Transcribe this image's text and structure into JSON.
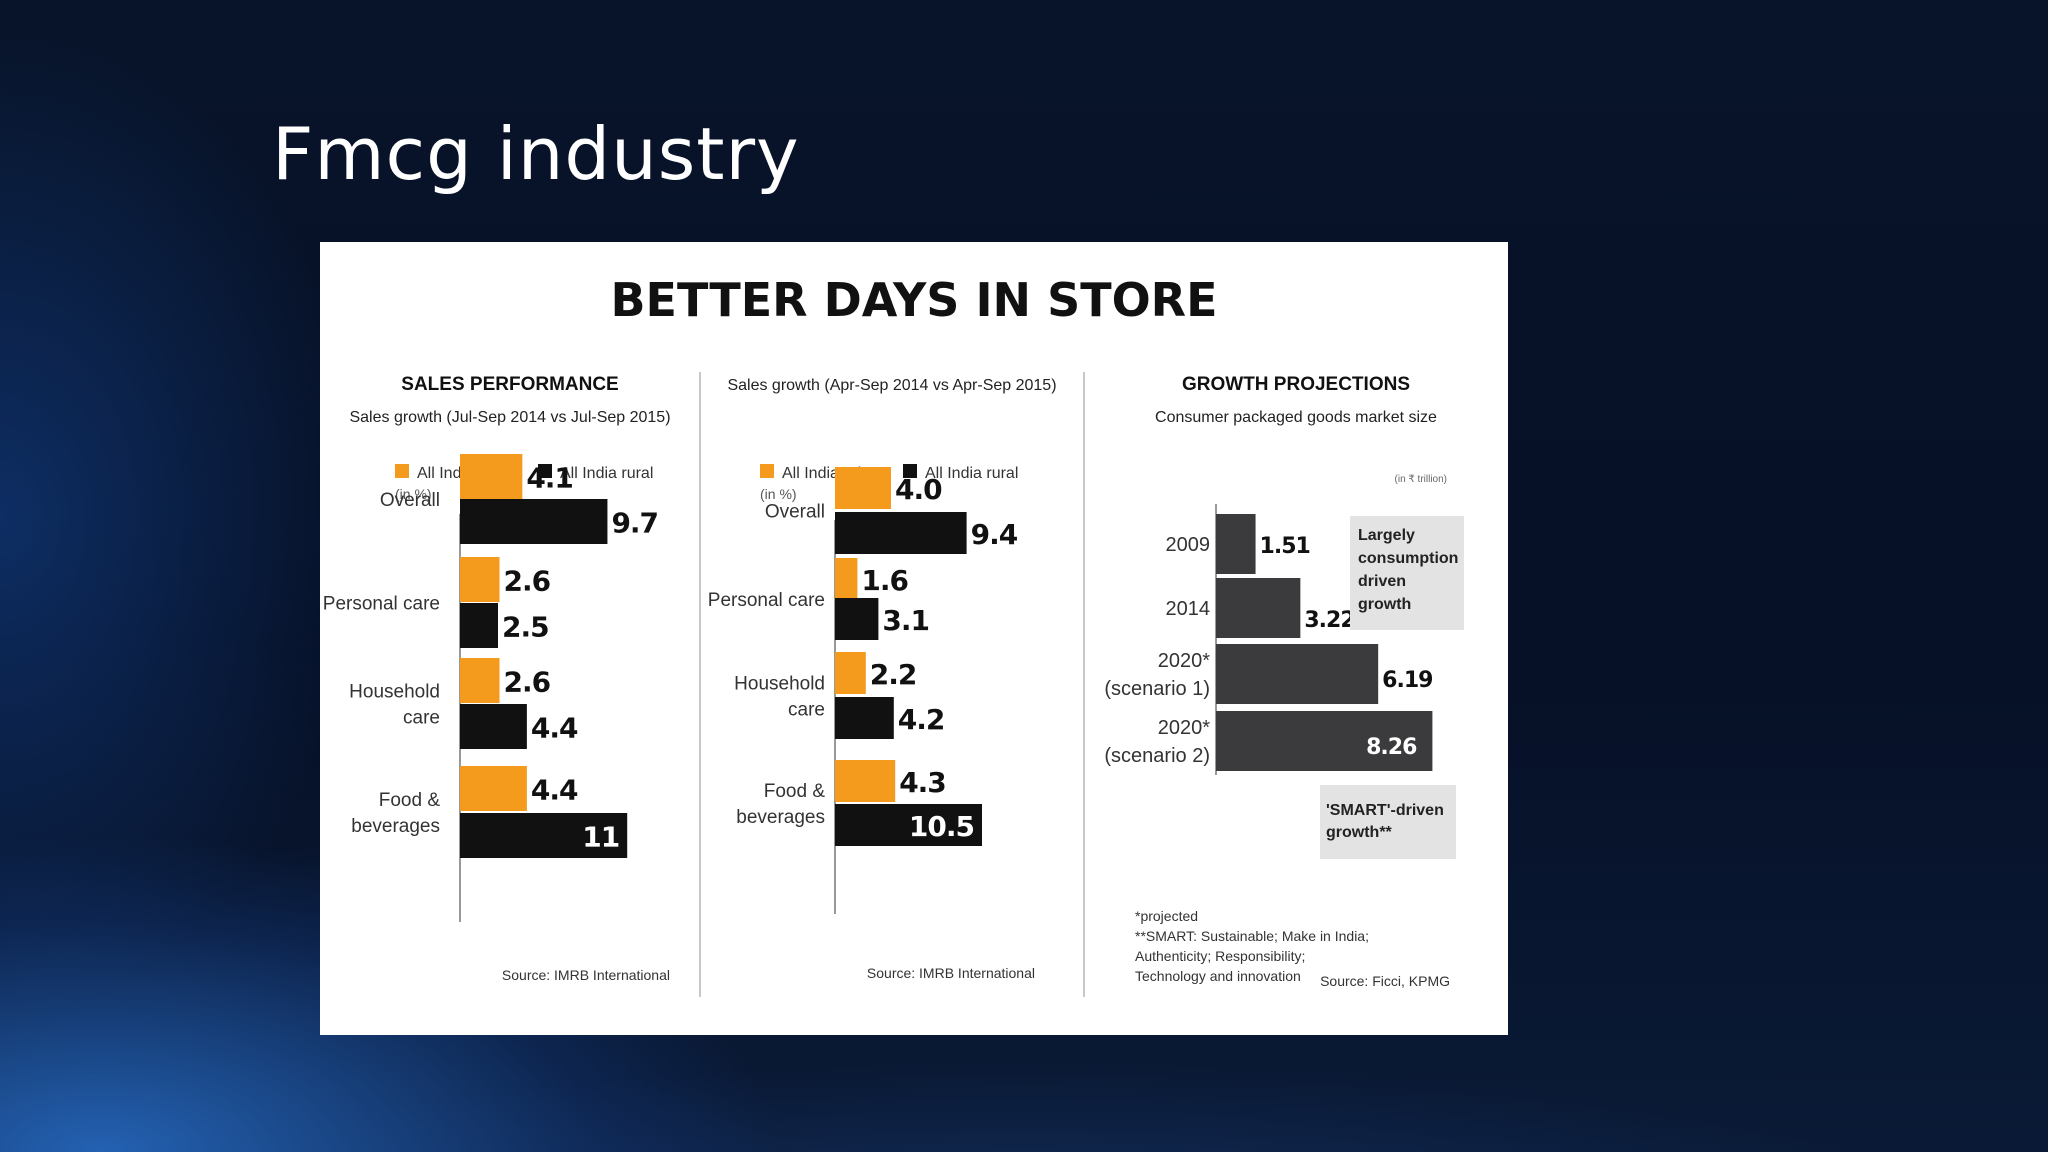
{
  "slide": {
    "title": "Fmcg industry"
  },
  "infographic": {
    "headline": "BETTER DAYS IN STORE",
    "colors": {
      "urban": "#f49a1c",
      "rural": "#111111",
      "projection": "#3b3b3d",
      "note_bg": "#e3e3e3"
    },
    "footnote": {
      "projected": "*projected",
      "smart_line1": "**SMART: Sustainable; Make in India;",
      "smart_line2": "Authenticity; Responsibility;",
      "smart_line3": "Technology and innovation"
    }
  },
  "chart_data": [
    {
      "type": "bar",
      "orientation": "horizontal",
      "title": "SALES PERFORMANCE",
      "subtitle": "Sales growth (Jul-Sep 2014  vs Jul-Sep 2015)",
      "unit": "(in %)",
      "categories": [
        [
          "Overall"
        ],
        [
          "Personal care"
        ],
        [
          "Household",
          "care"
        ],
        [
          "Food &",
          "beverages"
        ]
      ],
      "series": [
        {
          "name": "All India urban",
          "values": [
            4.1,
            2.6,
            2.6,
            4.4
          ],
          "labels": [
            "4.1",
            "2.6",
            "2.6",
            "4.4"
          ]
        },
        {
          "name": "All India rural",
          "values": [
            9.7,
            2.5,
            4.4,
            11
          ],
          "labels": [
            "9.7",
            "2.5",
            "4.4",
            "11"
          ]
        }
      ],
      "source": "Source: IMRB International"
    },
    {
      "type": "bar",
      "orientation": "horizontal",
      "title": "",
      "subtitle": "Sales growth (Apr-Sep 2014 vs Apr-Sep 2015)",
      "unit": "(in %)",
      "categories": [
        [
          "Overall"
        ],
        [
          "Personal care"
        ],
        [
          "Household",
          "care"
        ],
        [
          "Food &",
          "beverages"
        ]
      ],
      "series": [
        {
          "name": "All India urban",
          "values": [
            4.0,
            1.6,
            2.2,
            4.3
          ],
          "labels": [
            "4.0",
            "1.6",
            "2.2",
            "4.3"
          ]
        },
        {
          "name": "All India rural",
          "values": [
            9.4,
            3.1,
            4.2,
            10.5
          ],
          "labels": [
            "9.4",
            "3.1",
            "4.2",
            "10.5"
          ]
        }
      ],
      "source": "Source: IMRB International"
    },
    {
      "type": "bar",
      "orientation": "horizontal",
      "title": "GROWTH PROJECTIONS",
      "subtitle": "Consumer packaged goods market size",
      "unit": "(in ₹ trillion)",
      "categories": [
        [
          "2009"
        ],
        [
          "2014"
        ],
        [
          "2020*",
          "(scenario 1)"
        ],
        [
          "2020*",
          "(scenario 2)"
        ]
      ],
      "series": [
        {
          "name": "",
          "values": [
            1.51,
            3.22,
            6.19,
            8.26
          ],
          "labels": [
            "1.51",
            "3.22",
            "6.19",
            "8.26"
          ]
        }
      ],
      "annotations": [
        {
          "lines": [
            "Largely",
            "consumption",
            "driven",
            "growth"
          ]
        },
        {
          "lines": [
            "'SMART'-driven",
            "growth**"
          ]
        }
      ],
      "source": "Source: Ficci, KPMG"
    }
  ]
}
